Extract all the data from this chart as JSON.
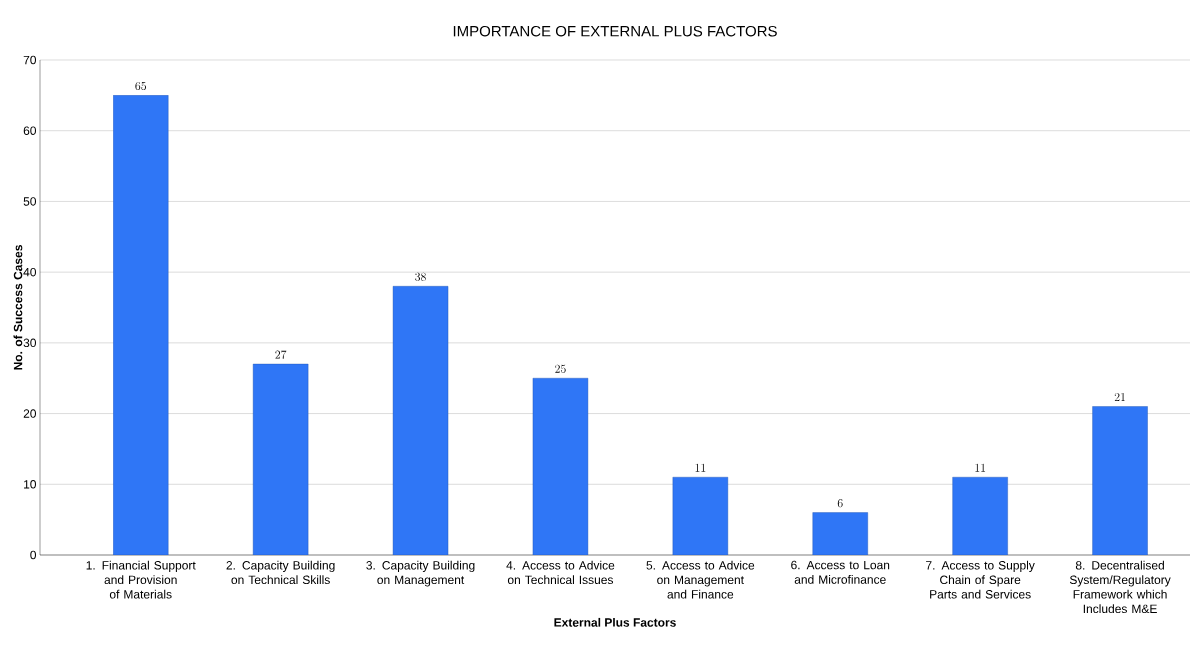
{
  "chart_data": {
    "type": "bar",
    "title": "IMPORTANCE OF EXTERNAL PLUS FACTORS",
    "xlabel": "External Plus Factors",
    "ylabel": "No. of Success Cases",
    "categories": [
      "1. Financial Support and Provision of Materials",
      "2. Capacity Building on Technical Skills",
      "3. Capacity Building on Management",
      "4. Access to Advice on Technical Issues",
      "5. Access to Advice on Management and Finance",
      "6. Access to Loan and Microfinance",
      "7. Access to Supply Chain of Spare Parts and Services",
      "8. Decentralised System/Regulatory Framework which Includes M&E"
    ],
    "values": [
      65,
      27,
      38,
      25,
      11,
      6,
      11,
      21
    ],
    "color": "#2f76f6",
    "ylim": [
      0,
      70
    ],
    "yticks": [
      0,
      10,
      20,
      30,
      40,
      50,
      60,
      70
    ],
    "grid": "y",
    "data_labels": true
  }
}
